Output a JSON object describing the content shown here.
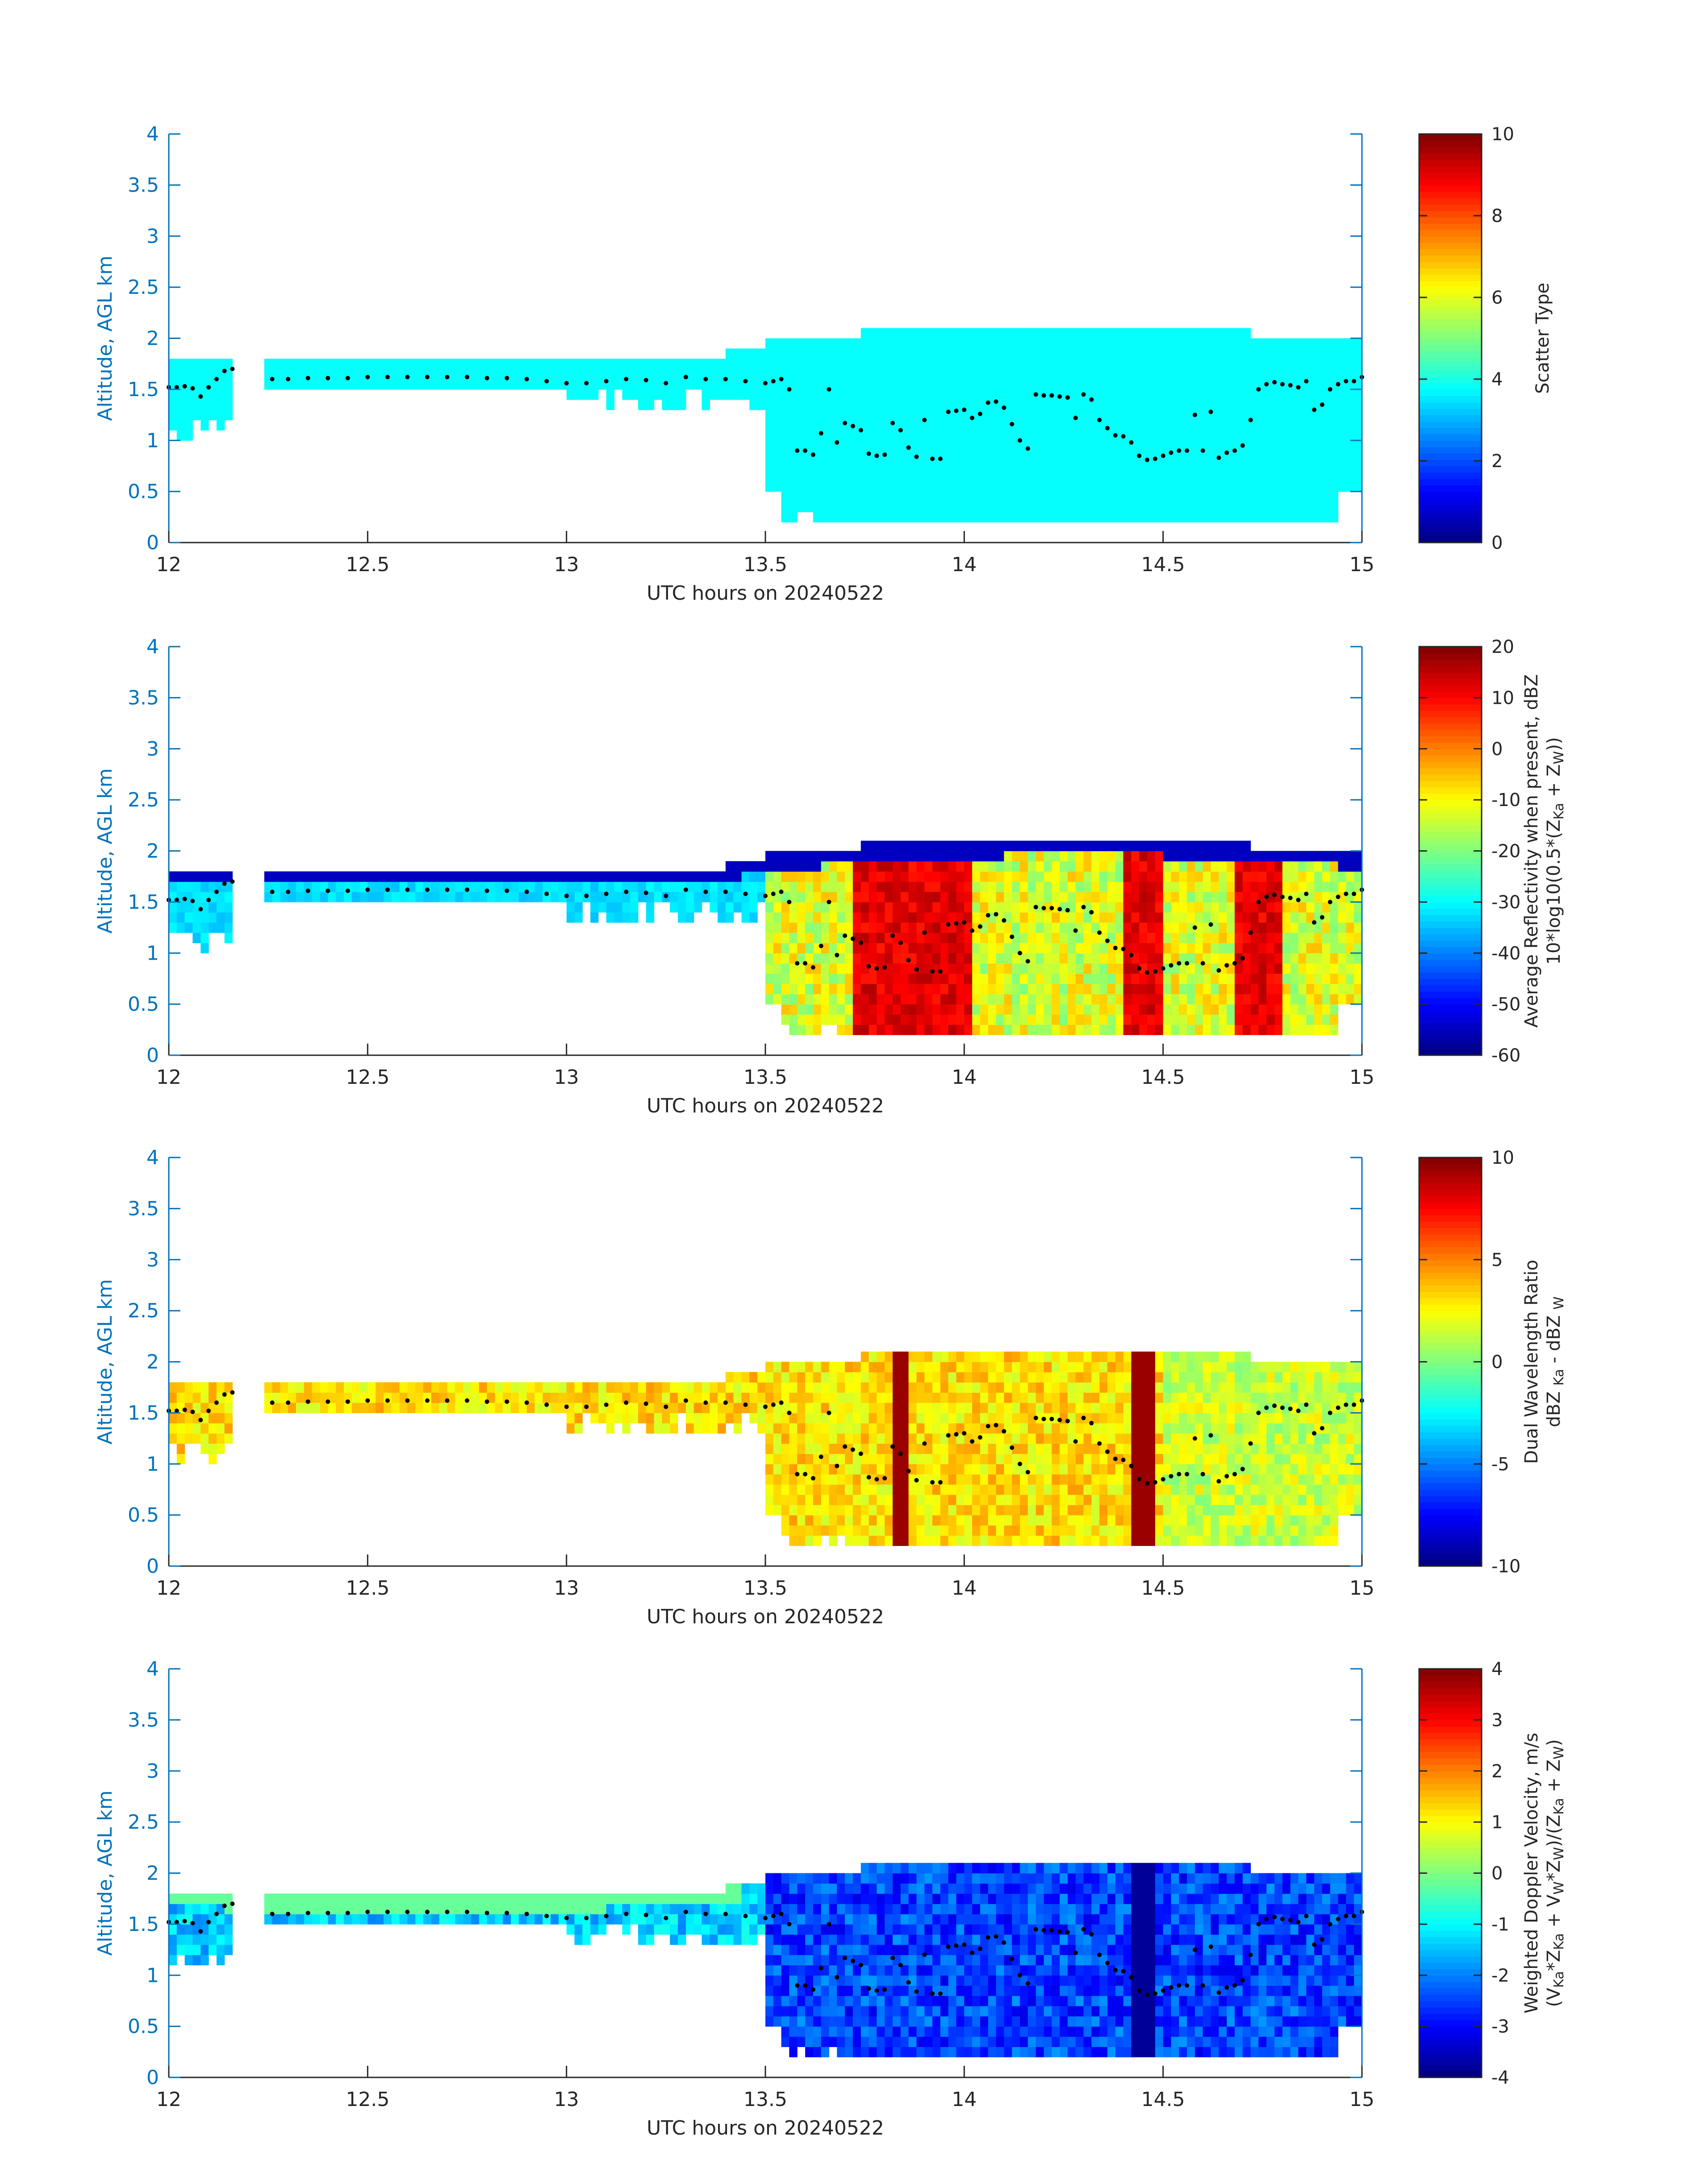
{
  "figure": {
    "panels": [
      {
        "ylabel": "Altitude, AGL km",
        "xlabel": "UTC hours on 20240522",
        "colorbar": {
          "label_lines": [
            [
              "Scatter Type"
            ]
          ],
          "ticks": [
            "0",
            "2",
            "4",
            "6",
            "8",
            "10"
          ],
          "range": [
            0,
            10
          ]
        }
      },
      {
        "ylabel": "Altitude, AGL km",
        "xlabel": "UTC hours on 20240522",
        "colorbar": {
          "label_lines": [
            [
              "Average Reflectivity when present, dBZ"
            ],
            [
              "10*log10(0.5*(Z",
              "Ka",
              " + Z",
              "W",
              "))"
            ]
          ],
          "ticks": [
            "-60",
            "-50",
            "-40",
            "-30",
            "-20",
            "-10",
            "0",
            "10",
            "20"
          ],
          "range": [
            -60,
            20
          ]
        }
      },
      {
        "ylabel": "Altitude, AGL km",
        "xlabel": "UTC hours on 20240522",
        "colorbar": {
          "label_lines": [
            [
              "Dual Wavelength Ratio"
            ],
            [
              "dBZ ",
              "Ka",
              " - dBZ ",
              "W"
            ]
          ],
          "ticks": [
            "-10",
            "-5",
            "0",
            "5",
            "10"
          ],
          "range": [
            -10,
            10
          ]
        }
      },
      {
        "ylabel": "Altitude, AGL km",
        "xlabel": "UTC hours on 20240522",
        "colorbar": {
          "label_lines": [
            [
              "Weighted Doppler Velocity, m/s"
            ],
            [
              "(V",
              "Ka",
              "*Z",
              "Ka",
              " + V",
              "W",
              "*Z",
              "W",
              ")/(Z",
              "Ka",
              " + Z",
              "W",
              ")"
            ]
          ],
          "ticks": [
            "-4",
            "-3",
            "-2",
            "-1",
            "0",
            "1",
            "2",
            "3",
            "4"
          ],
          "range": [
            -4,
            4
          ]
        }
      }
    ],
    "x_ticks": [
      "12",
      "12.5",
      "13",
      "13.5",
      "14",
      "14.5",
      "15"
    ],
    "y_ticks": [
      "0",
      "0.5",
      "1",
      "1.5",
      "2",
      "2.5",
      "3",
      "3.5",
      "4"
    ]
  },
  "chart_data": [
    {
      "type": "heatmap",
      "xlabel": "UTC hours on 20240522",
      "ylabel": "Altitude, AGL km",
      "xlim": [
        12,
        15
      ],
      "ylim": [
        0,
        4
      ],
      "colormap": "jet",
      "colorbar_label": "Scatter Type",
      "clim": [
        0,
        10
      ],
      "grid": false,
      "overlay_series": "cloud base height (black dots)"
    },
    {
      "type": "heatmap",
      "xlabel": "UTC hours on 20240522",
      "ylabel": "Altitude, AGL km",
      "xlim": [
        12,
        15
      ],
      "ylim": [
        0,
        4
      ],
      "colormap": "jet",
      "colorbar_label": "Average Reflectivity when present, dBZ 10*log10(0.5*(ZKa + ZW))",
      "clim": [
        -60,
        20
      ],
      "grid": false
    },
    {
      "type": "heatmap",
      "xlabel": "UTC hours on 20240522",
      "ylabel": "Altitude, AGL km",
      "xlim": [
        12,
        15
      ],
      "ylim": [
        0,
        4
      ],
      "colormap": "jet",
      "colorbar_label": "Dual Wavelength Ratio dBZ Ka - dBZ W",
      "clim": [
        -10,
        10
      ],
      "grid": false
    },
    {
      "type": "heatmap",
      "xlabel": "UTC hours on 20240522",
      "ylabel": "Altitude, AGL km",
      "xlim": [
        12,
        15
      ],
      "ylim": [
        0,
        4
      ],
      "colormap": "jet",
      "colorbar_label": "Weighted Doppler Velocity, m/s (VKa*ZKa + VW*ZW)/(ZKa + ZW)",
      "clim": [
        -4,
        4
      ],
      "grid": false
    }
  ],
  "cloud_base": {
    "x": [
      12.0,
      12.02,
      12.04,
      12.06,
      12.08,
      12.1,
      12.12,
      12.14,
      12.16,
      12.26,
      12.3,
      12.35,
      12.4,
      12.45,
      12.5,
      12.55,
      12.6,
      12.65,
      12.7,
      12.75,
      12.8,
      12.85,
      12.9,
      12.95,
      13.0,
      13.05,
      13.1,
      13.15,
      13.2,
      13.25,
      13.3,
      13.35,
      13.4,
      13.45,
      13.5,
      13.52,
      13.54,
      13.56,
      13.58,
      13.6,
      13.62,
      13.64,
      13.66,
      13.68,
      13.7,
      13.72,
      13.74,
      13.76,
      13.78,
      13.8,
      13.82,
      13.84,
      13.86,
      13.88,
      13.9,
      13.92,
      13.94,
      13.96,
      13.98,
      14.0,
      14.02,
      14.04,
      14.06,
      14.08,
      14.1,
      14.12,
      14.14,
      14.16,
      14.18,
      14.2,
      14.22,
      14.24,
      14.26,
      14.28,
      14.3,
      14.32,
      14.34,
      14.36,
      14.38,
      14.4,
      14.42,
      14.44,
      14.46,
      14.48,
      14.5,
      14.52,
      14.54,
      14.56,
      14.58,
      14.6,
      14.62,
      14.64,
      14.66,
      14.68,
      14.7,
      14.72,
      14.74,
      14.76,
      14.78,
      14.8,
      14.82,
      14.84,
      14.86,
      14.88,
      14.9,
      14.92,
      14.94,
      14.96,
      14.98,
      15.0
    ],
    "y": [
      1.52,
      1.52,
      1.53,
      1.51,
      1.43,
      1.52,
      1.6,
      1.68,
      1.7,
      1.6,
      1.6,
      1.61,
      1.61,
      1.61,
      1.62,
      1.62,
      1.62,
      1.62,
      1.62,
      1.62,
      1.61,
      1.61,
      1.6,
      1.58,
      1.56,
      1.56,
      1.58,
      1.6,
      1.59,
      1.56,
      1.62,
      1.6,
      1.6,
      1.58,
      1.56,
      1.58,
      1.6,
      1.5,
      0.9,
      0.9,
      0.86,
      1.07,
      1.5,
      0.98,
      1.17,
      1.14,
      1.1,
      0.87,
      0.85,
      0.86,
      1.17,
      1.1,
      0.93,
      0.84,
      1.2,
      0.82,
      0.82,
      1.28,
      1.29,
      1.3,
      1.22,
      1.26,
      1.37,
      1.38,
      1.32,
      1.16,
      1.0,
      0.92,
      1.45,
      1.44,
      1.44,
      1.43,
      1.42,
      1.22,
      1.45,
      1.4,
      1.2,
      1.12,
      1.05,
      1.04,
      0.98,
      0.85,
      0.81,
      0.82,
      0.85,
      0.88,
      0.9,
      0.9,
      1.25,
      0.9,
      1.28,
      0.83,
      0.88,
      0.9,
      0.95,
      1.2,
      1.5,
      1.55,
      1.57,
      1.55,
      1.54,
      1.52,
      1.58,
      1.3,
      1.35,
      1.5,
      1.55,
      1.58,
      1.58,
      1.62
    ]
  }
}
